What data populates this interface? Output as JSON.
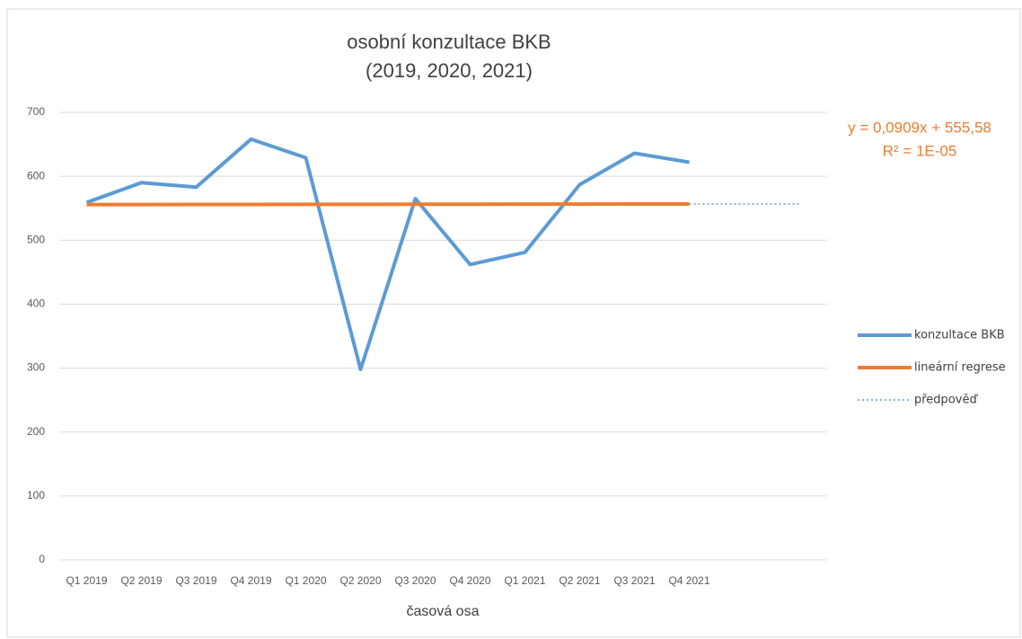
{
  "chart_data": {
    "type": "line",
    "title": [
      "osobní konzultace BKB",
      "(2019, 2020, 2021)"
    ],
    "x_label": "časová osa",
    "categories": [
      "Q1 2019",
      "Q2 2019",
      "Q3 2019",
      "Q4 2019",
      "Q1 2020",
      "Q2 2020",
      "Q3 2020",
      "Q4 2020",
      "Q1 2021",
      "Q2 2021",
      "Q3 2021",
      "Q4 2021",
      null,
      null
    ],
    "series": [
      {
        "name": "konzultace BKB",
        "color": "#5b9bd5",
        "style": "solid",
        "values": [
          559,
          590,
          583,
          658,
          629,
          298,
          565,
          462,
          481,
          587,
          636,
          622,
          null,
          null
        ]
      },
      {
        "name": "lineární regrese",
        "color": "#ed7d31",
        "style": "solid",
        "values": [
          555.67,
          555.76,
          555.85,
          555.94,
          556.03,
          556.13,
          556.22,
          556.31,
          556.4,
          556.49,
          556.58,
          556.67,
          null,
          null
        ]
      },
      {
        "name": "předpověď",
        "color": "#5b9bd5",
        "style": "dotted",
        "values": [
          null,
          null,
          null,
          null,
          null,
          null,
          null,
          null,
          null,
          null,
          null,
          556.67,
          556.76,
          556.85
        ]
      }
    ],
    "annotations": [
      "y = 0,0909x + 555,58",
      "R² = 1E-05"
    ],
    "ylim": [
      0,
      700
    ],
    "yticks": [
      0,
      100,
      200,
      300,
      400,
      500,
      600,
      700
    ],
    "grid": true,
    "legend": "right"
  }
}
